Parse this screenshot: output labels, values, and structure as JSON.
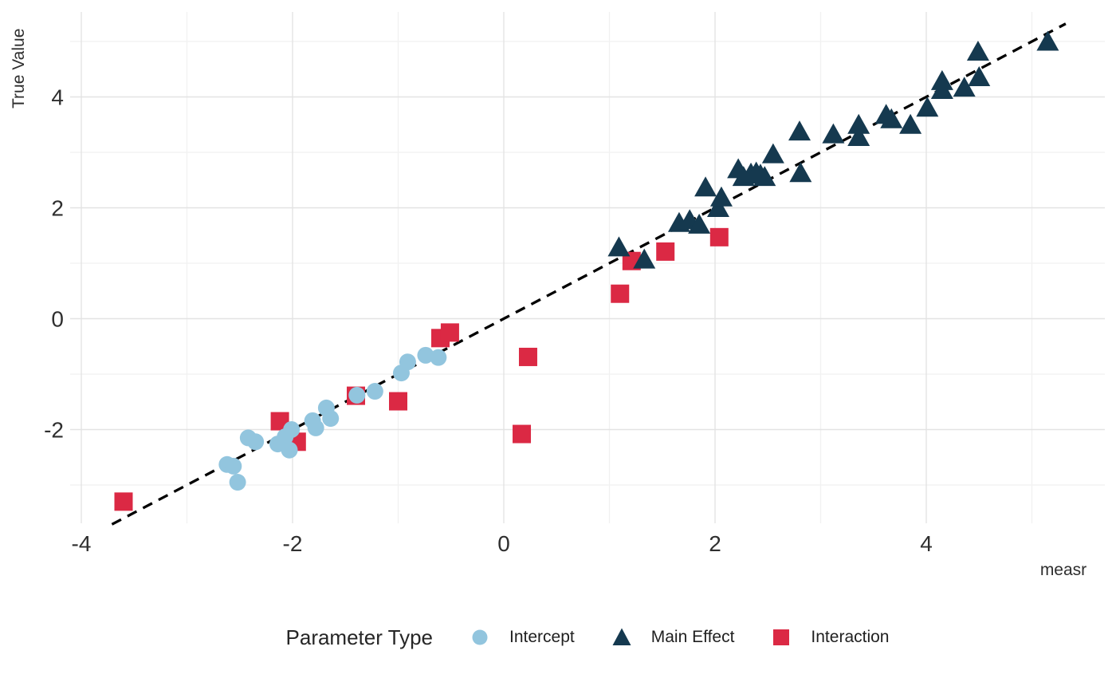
{
  "chart_data": {
    "type": "scatter",
    "title": "",
    "xlabel": "measr",
    "ylabel": "True Value",
    "xlim": [
      -4.1,
      5.7
    ],
    "ylim": [
      -3.65,
      5.55
    ],
    "x_ticks": [
      "-4",
      "-2",
      "0",
      "2",
      "4"
    ],
    "x_tick_values": [
      -4,
      -2,
      0,
      2,
      4
    ],
    "y_ticks": [
      "-2",
      "0",
      "2",
      "4"
    ],
    "y_tick_values": [
      -2,
      0,
      2,
      4
    ],
    "x_minor_tick_values": [
      -3,
      -1,
      1,
      3,
      5
    ],
    "y_minor_tick_values": [
      -3,
      -1,
      1,
      3,
      5
    ],
    "grid": true,
    "reference_line": {
      "description": "identity line y = x, black dashed",
      "x1": -3.71,
      "y1": -3.71,
      "x2": 5.32,
      "y2": 5.32,
      "color": "#000000",
      "style": "dashed"
    },
    "legend": {
      "title": "Parameter Type",
      "position": "bottom"
    },
    "series": [
      {
        "name": "Intercept",
        "marker": "circle",
        "color": "#92C5DE",
        "points": [
          [
            -2.62,
            -2.63
          ],
          [
            -2.56,
            -2.66
          ],
          [
            -2.52,
            -2.95
          ],
          [
            -2.42,
            -2.15
          ],
          [
            -2.35,
            -2.22
          ],
          [
            -2.14,
            -2.26
          ],
          [
            -2.07,
            -2.13
          ],
          [
            -2.03,
            -2.37
          ],
          [
            -2.01,
            -2.0
          ],
          [
            -1.81,
            -1.84
          ],
          [
            -1.78,
            -1.97
          ],
          [
            -1.68,
            -1.61
          ],
          [
            -1.64,
            -1.8
          ],
          [
            -1.39,
            -1.38
          ],
          [
            -1.22,
            -1.31
          ],
          [
            -0.97,
            -0.98
          ],
          [
            -0.91,
            -0.78
          ],
          [
            -0.74,
            -0.66
          ],
          [
            -0.62,
            -0.7
          ]
        ]
      },
      {
        "name": "Main Effect",
        "marker": "triangle",
        "color": "#15394F",
        "points": [
          [
            1.09,
            1.29
          ],
          [
            1.33,
            1.07
          ],
          [
            1.66,
            1.73
          ],
          [
            1.76,
            1.78
          ],
          [
            1.85,
            1.7
          ],
          [
            1.91,
            2.37
          ],
          [
            2.03,
            2.0
          ],
          [
            2.06,
            2.19
          ],
          [
            2.22,
            2.7
          ],
          [
            2.27,
            2.56
          ],
          [
            2.34,
            2.62
          ],
          [
            2.39,
            2.64
          ],
          [
            2.43,
            2.6
          ],
          [
            2.47,
            2.56
          ],
          [
            2.55,
            2.97
          ],
          [
            2.8,
            3.38
          ],
          [
            2.81,
            2.63
          ],
          [
            3.12,
            3.33
          ],
          [
            3.36,
            3.5
          ],
          [
            3.36,
            3.28
          ],
          [
            3.62,
            3.68
          ],
          [
            3.67,
            3.6
          ],
          [
            3.85,
            3.5
          ],
          [
            4.01,
            3.81
          ],
          [
            4.15,
            4.29
          ],
          [
            4.15,
            4.13
          ],
          [
            4.36,
            4.17
          ],
          [
            4.5,
            4.36
          ],
          [
            4.49,
            4.82
          ],
          [
            5.15,
            5.0
          ]
        ]
      },
      {
        "name": "Interaction",
        "marker": "square",
        "color": "#DB2944",
        "points": [
          [
            -3.6,
            -3.3
          ],
          [
            -2.12,
            -1.85
          ],
          [
            -1.96,
            -2.22
          ],
          [
            -1.4,
            -1.39
          ],
          [
            -1.0,
            -1.49
          ],
          [
            -0.6,
            -0.35
          ],
          [
            -0.51,
            -0.25
          ],
          [
            0.17,
            -2.08
          ],
          [
            0.23,
            -0.69
          ],
          [
            1.1,
            0.45
          ],
          [
            1.21,
            1.04
          ],
          [
            1.53,
            1.21
          ],
          [
            2.04,
            1.47
          ]
        ]
      }
    ]
  },
  "colors": {
    "background": "#ffffff",
    "grid_major": "#e3e3e3",
    "grid_minor": "#f1f1f1",
    "tick_text": "#2f2f2f",
    "axis_title_text": "#2e2e2e",
    "legend_title_text": "#262626",
    "legend_label_text": "#1f1f1f",
    "reference_line": "#000000",
    "intercept": "#92C5DE",
    "main_effect": "#15394F",
    "interaction": "#DB2944"
  }
}
